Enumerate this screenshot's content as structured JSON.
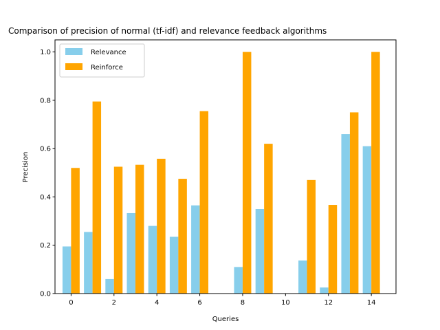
{
  "chart_data": {
    "type": "bar",
    "title": "Comparison of precision of normal (tf-idf) and relevance feedback algorithms",
    "xlabel": "Queries",
    "ylabel": "Precision",
    "xlim": [
      -0.75,
      15.15
    ],
    "ylim": [
      0,
      1.05
    ],
    "xticks": [
      0,
      2,
      4,
      6,
      8,
      10,
      12,
      14
    ],
    "xtick_labels": [
      "0",
      "2",
      "4",
      "6",
      "8",
      "10",
      "12",
      "14"
    ],
    "yticks": [
      0.0,
      0.2,
      0.4,
      0.6,
      0.8,
      1.0
    ],
    "ytick_labels": [
      "0.0",
      "0.2",
      "0.4",
      "0.6",
      "0.8",
      "1.0"
    ],
    "grid": false,
    "legend_position": "top-left",
    "x": [
      0,
      1,
      2,
      3,
      4,
      5,
      6,
      7,
      8,
      9,
      10,
      11,
      12,
      13,
      14
    ],
    "series": [
      {
        "name": "Relevance",
        "color": "#87ceeb",
        "values": [
          0.195,
          0.255,
          0.06,
          0.333,
          0.28,
          0.235,
          0.365,
          0.0,
          0.11,
          0.35,
          0.0,
          0.137,
          0.025,
          0.66,
          0.61
        ]
      },
      {
        "name": "Reinforce",
        "color": "#ffa500",
        "values": [
          0.52,
          0.795,
          0.525,
          0.533,
          0.558,
          0.475,
          0.755,
          0.0,
          1.0,
          0.62,
          0.0,
          0.47,
          0.367,
          0.75,
          1.0
        ]
      }
    ]
  }
}
